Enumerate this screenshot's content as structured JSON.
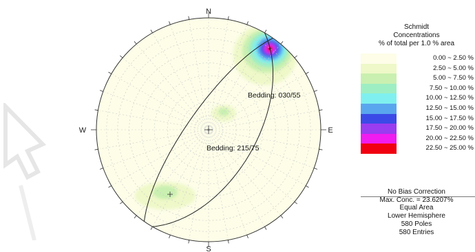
{
  "net": {
    "north": "N",
    "south": "S",
    "east": "E",
    "west": "W",
    "planes": [
      {
        "label": "Bedding: 030/55",
        "strike": 30,
        "dip": 55
      },
      {
        "label": "Bedding: 215/75",
        "strike": 215,
        "dip": 75
      }
    ]
  },
  "legend": {
    "title1": "Schmidt",
    "title2": "Concentrations",
    "title3": "% of total per 1.0 % area",
    "bins": [
      {
        "range": "0.00 ~  2.50 %",
        "color": "#fdfde8"
      },
      {
        "range": "2.50 ~  5.00 %",
        "color": "#eef8c8"
      },
      {
        "range": "5.00 ~  7.50 %",
        "color": "#c9f0b0"
      },
      {
        "range": "7.50 ~ 10.00 %",
        "color": "#9eeec3"
      },
      {
        "range": "10.00 ~ 12.50 %",
        "color": "#7ff0ef"
      },
      {
        "range": "12.50 ~ 15.00 %",
        "color": "#5aa6ee"
      },
      {
        "range": "15.00 ~ 17.50 %",
        "color": "#3b4ae6"
      },
      {
        "range": "17.50 ~ 20.00 %",
        "color": "#9a3cf0"
      },
      {
        "range": "20.00 ~ 22.50 %",
        "color": "#f01cf0"
      },
      {
        "range": "22.50 ~ 25.00 %",
        "color": "#f00010"
      }
    ]
  },
  "info": {
    "bias": "No Bias Correction",
    "max_conc": "Max. Conc. = 23.6207%",
    "projection": "Equal Area",
    "hemisphere": "Lower Hemisphere",
    "poles": "580 Poles",
    "entries": "580 Entries"
  }
}
